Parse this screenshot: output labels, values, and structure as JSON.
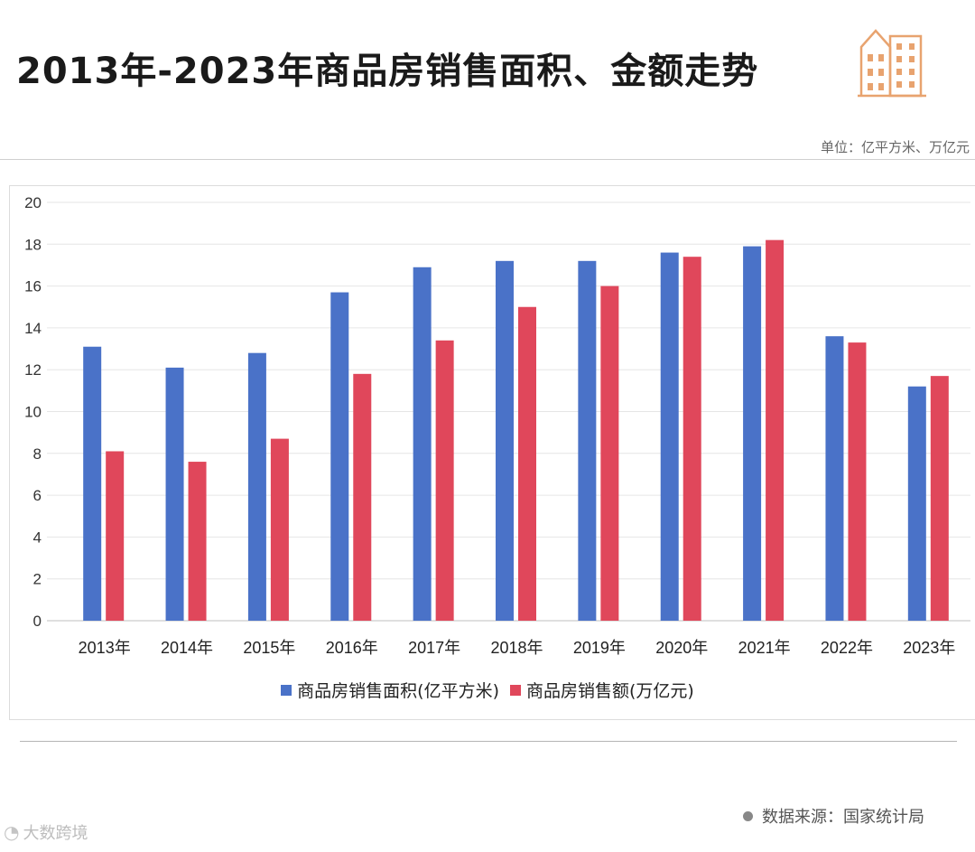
{
  "title": "2013年-2023年商品房销售面积、金额走势",
  "unit_label": "单位：亿平方米、万亿元",
  "source_label": "数据来源：国家统计局",
  "watermark_label": "大数跨境",
  "colors": {
    "area": "#4a72c8",
    "amount": "#e0475b",
    "logo": "#e8a36f"
  },
  "chart_data": {
    "type": "bar",
    "title": "2013年-2023年商品房销售面积、金额走势",
    "categories": [
      "2013年",
      "2014年",
      "2015年",
      "2016年",
      "2017年",
      "2018年",
      "2019年",
      "2020年",
      "2021年",
      "2022年",
      "2023年"
    ],
    "series": [
      {
        "name": "商品房销售面积(亿平方米)",
        "color": "#4a72c8",
        "values": [
          13.1,
          12.1,
          12.8,
          15.7,
          16.9,
          17.2,
          17.2,
          17.6,
          17.9,
          13.6,
          11.2
        ]
      },
      {
        "name": "商品房销售额(万亿元)",
        "color": "#e0475b",
        "values": [
          8.1,
          7.6,
          8.7,
          11.8,
          13.4,
          15.0,
          16.0,
          17.4,
          18.2,
          13.3,
          11.7
        ]
      }
    ],
    "yticks": [
      0,
      2,
      4,
      6,
      8,
      10,
      12,
      14,
      16,
      18,
      20
    ],
    "ylim": [
      0,
      20
    ],
    "xlabel": "",
    "ylabel": "",
    "legend": "bottom-center",
    "grid": true
  }
}
